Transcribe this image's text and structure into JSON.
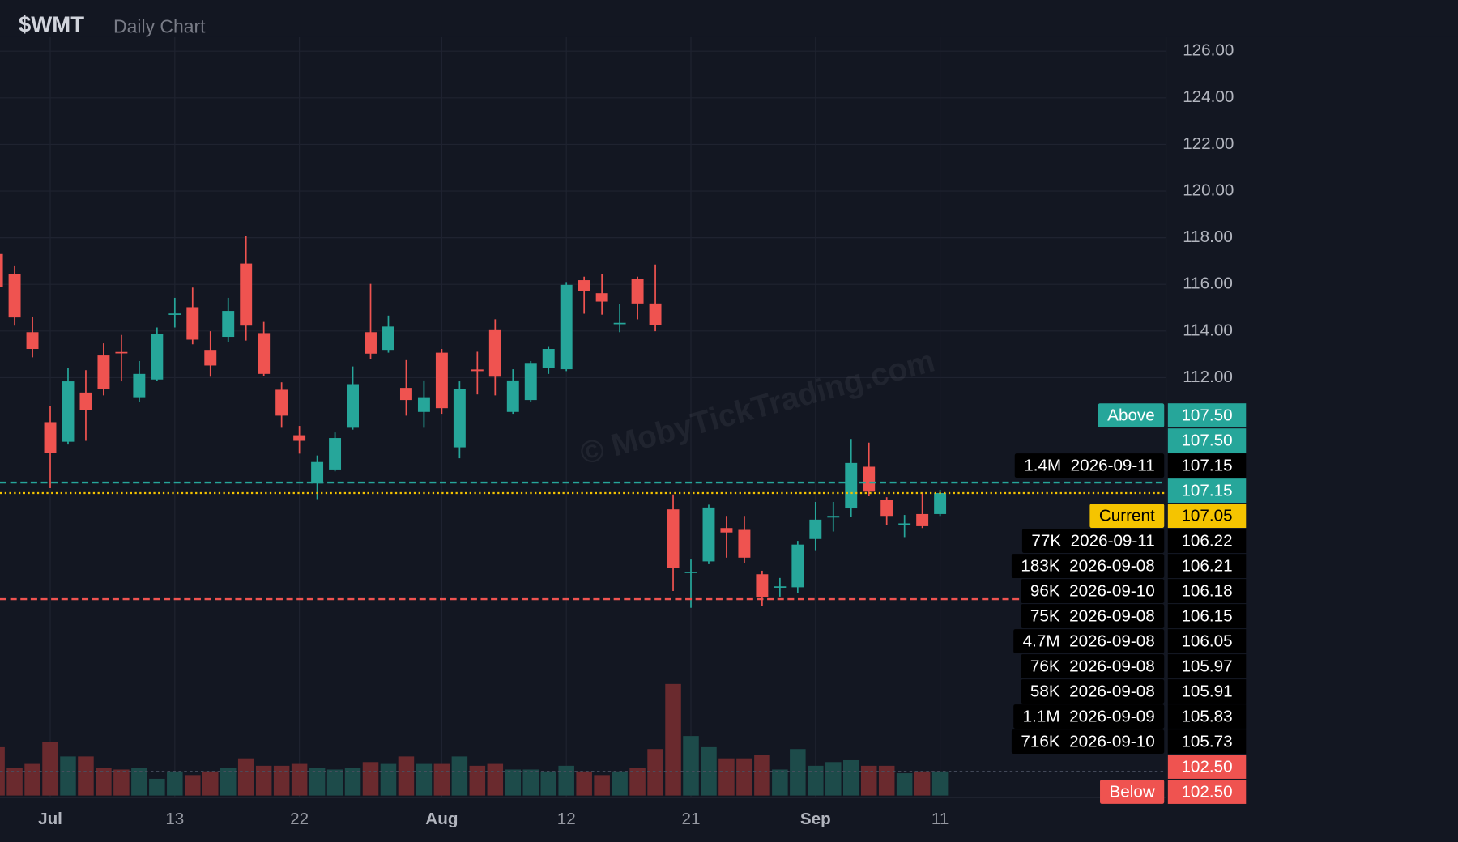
{
  "chart_data": {
    "type": "candlestick",
    "title": "$WMT",
    "subtitle": "Daily Chart",
    "watermark": "© MobyTickTrading.com",
    "categories": [
      null,
      null,
      null,
      "Jul",
      null,
      null,
      null,
      null,
      null,
      null,
      "13",
      null,
      null,
      null,
      null,
      null,
      null,
      "22",
      null,
      null,
      null,
      null,
      null,
      null,
      null,
      "Aug",
      null,
      null,
      null,
      null,
      null,
      null,
      "12",
      null,
      null,
      null,
      null,
      null,
      null,
      "21",
      null,
      null,
      null,
      null,
      null,
      null,
      "Sep",
      null,
      null,
      null,
      null,
      null,
      null,
      "11"
    ],
    "open": [
      117.3,
      116.45,
      113.95,
      110.09,
      109.25,
      111.36,
      112.95,
      113.1,
      111.16,
      111.92,
      114.7,
      115.02,
      113.19,
      113.75,
      116.89,
      113.91,
      111.48,
      109.53,
      107.46,
      108.06,
      109.85,
      113.95,
      113.19,
      111.56,
      110.53,
      113.07,
      109.01,
      112.35,
      114.07,
      110.53,
      111.04,
      112.4,
      112.36,
      116.18,
      115.62,
      114.3,
      116.25,
      115.18,
      106.35,
      103.65,
      104.12,
      105.55,
      105.47,
      103.57,
      103.0,
      103.01,
      105.08,
      106.0,
      106.39,
      108.18,
      106.75,
      105.7,
      106.15,
      106.15
    ],
    "high": [
      117.5,
      116.81,
      114.62,
      110.77,
      112.4,
      112.32,
      113.47,
      113.83,
      112.71,
      114.15,
      115.42,
      115.86,
      113.99,
      115.42,
      118.08,
      114.39,
      111.8,
      109.93,
      108.66,
      109.65,
      112.48,
      116.02,
      114.66,
      112.75,
      111.88,
      113.23,
      111.84,
      113.11,
      114.5,
      112.36,
      112.71,
      113.35,
      116.1,
      116.33,
      116.45,
      115.14,
      116.33,
      116.85,
      106.99,
      104.2,
      106.55,
      106.07,
      106.07,
      103.72,
      103.41,
      105.0,
      106.67,
      106.67,
      109.37,
      109.21,
      106.87,
      106.11,
      107.07,
      107.19
    ],
    "low": [
      115.5,
      114.23,
      112.87,
      107.26,
      109.13,
      109.29,
      111.24,
      111.84,
      110.96,
      111.84,
      114.15,
      113.43,
      112.04,
      113.51,
      113.59,
      112.08,
      109.85,
      108.74,
      106.79,
      107.98,
      109.77,
      112.79,
      113.07,
      110.37,
      109.85,
      110.45,
      108.54,
      111.28,
      111.24,
      110.45,
      110.96,
      112.16,
      112.28,
      114.74,
      114.7,
      113.95,
      114.5,
      113.99,
      102.85,
      102.13,
      104.0,
      104.28,
      104.04,
      102.21,
      102.61,
      102.77,
      104.6,
      105.4,
      106.03,
      106.91,
      105.67,
      105.16,
      105.55,
      106.07
    ],
    "close": [
      115.9,
      114.58,
      113.23,
      108.78,
      111.84,
      110.61,
      111.52,
      113.05,
      112.16,
      113.87,
      114.75,
      113.63,
      112.52,
      114.86,
      114.23,
      112.16,
      110.37,
      109.29,
      108.38,
      109.41,
      111.72,
      113.03,
      114.19,
      111.04,
      111.16,
      110.69,
      111.52,
      112.28,
      112.04,
      111.88,
      112.63,
      113.23,
      115.98,
      115.7,
      115.26,
      114.35,
      115.18,
      114.27,
      103.84,
      103.68,
      106.43,
      105.36,
      104.28,
      102.57,
      103.05,
      104.84,
      105.91,
      106.07,
      108.34,
      107.11,
      106.07,
      105.75,
      105.63,
      107.05
    ],
    "volume": [
      6.5,
      3.75,
      4.25,
      7.25,
      5.25,
      5.25,
      3.75,
      3.5,
      3.75,
      2.25,
      3.25,
      2.75,
      3.25,
      3.75,
      5,
      4,
      4,
      4.25,
      3.75,
      3.5,
      3.75,
      4.5,
      4.25,
      5.25,
      4.25,
      4.25,
      5.25,
      4,
      4.25,
      3.5,
      3.5,
      3.25,
      4,
      3.25,
      2.75,
      3.25,
      3.75,
      6.25,
      15,
      8,
      6.5,
      5,
      5,
      5.5,
      3.5,
      6.25,
      4,
      4.5,
      4.75,
      4,
      4,
      3,
      3.25,
      3.25
    ],
    "volume_lim": [
      0,
      16
    ],
    "up_color": "#26a69a",
    "down_color": "#ef5350",
    "ylim": [
      94,
      126.6
    ],
    "yticks": [
      {
        "value": 112,
        "label": "112.00"
      },
      {
        "value": 114,
        "label": "114.00"
      },
      {
        "value": 116,
        "label": "116.00"
      },
      {
        "value": 118,
        "label": "118.00"
      },
      {
        "value": 120,
        "label": "120.00"
      },
      {
        "value": 122,
        "label": "122.00"
      },
      {
        "value": 124,
        "label": "124.00"
      },
      {
        "value": 126,
        "label": "126.00"
      }
    ],
    "grid": true,
    "levels": [
      {
        "label": "Above",
        "value": 107.5,
        "value_label": "107.50",
        "color": "#26a69a",
        "line_style": "dashed"
      },
      {
        "value": 107.5,
        "value_label": "107.50",
        "color": "#26a69a"
      },
      {
        "size": "1.4M",
        "date": "2026-09-11",
        "value": 107.15,
        "value_label": "107.15",
        "color": "#000000"
      },
      {
        "value": 107.15,
        "value_label": "107.15",
        "color": "#26a69a"
      },
      {
        "label": "Current",
        "value": 107.05,
        "value_label": "107.05",
        "color": "#f5c400",
        "line_style": "dotted"
      },
      {
        "size": "77K",
        "date": "2026-09-11",
        "value": 106.22,
        "value_label": "106.22",
        "color": "#000000"
      },
      {
        "size": "183K",
        "date": "2026-09-08",
        "value": 106.21,
        "value_label": "106.21",
        "color": "#000000"
      },
      {
        "size": "96K",
        "date": "2026-09-10",
        "value": 106.18,
        "value_label": "106.18",
        "color": "#000000"
      },
      {
        "size": "75K",
        "date": "2026-09-08",
        "value": 106.15,
        "value_label": "106.15",
        "color": "#000000"
      },
      {
        "size": "4.7M",
        "date": "2026-09-08",
        "value": 106.05,
        "value_label": "106.05",
        "color": "#000000"
      },
      {
        "size": "76K",
        "date": "2026-09-08",
        "value": 105.97,
        "value_label": "105.97",
        "color": "#000000"
      },
      {
        "size": "58K",
        "date": "2026-09-08",
        "value": 105.91,
        "value_label": "105.91",
        "color": "#000000"
      },
      {
        "size": "1.1M",
        "date": "2026-09-09",
        "value": 105.83,
        "value_label": "105.83",
        "color": "#000000"
      },
      {
        "size": "716K",
        "date": "2026-09-10",
        "value": 105.73,
        "value_label": "105.73",
        "color": "#000000"
      },
      {
        "value": 102.5,
        "value_label": "102.50",
        "color": "#ef5350"
      },
      {
        "label": "Below",
        "value": 102.5,
        "value_label": "102.50",
        "color": "#ef5350",
        "line_style": "dashed"
      }
    ]
  }
}
